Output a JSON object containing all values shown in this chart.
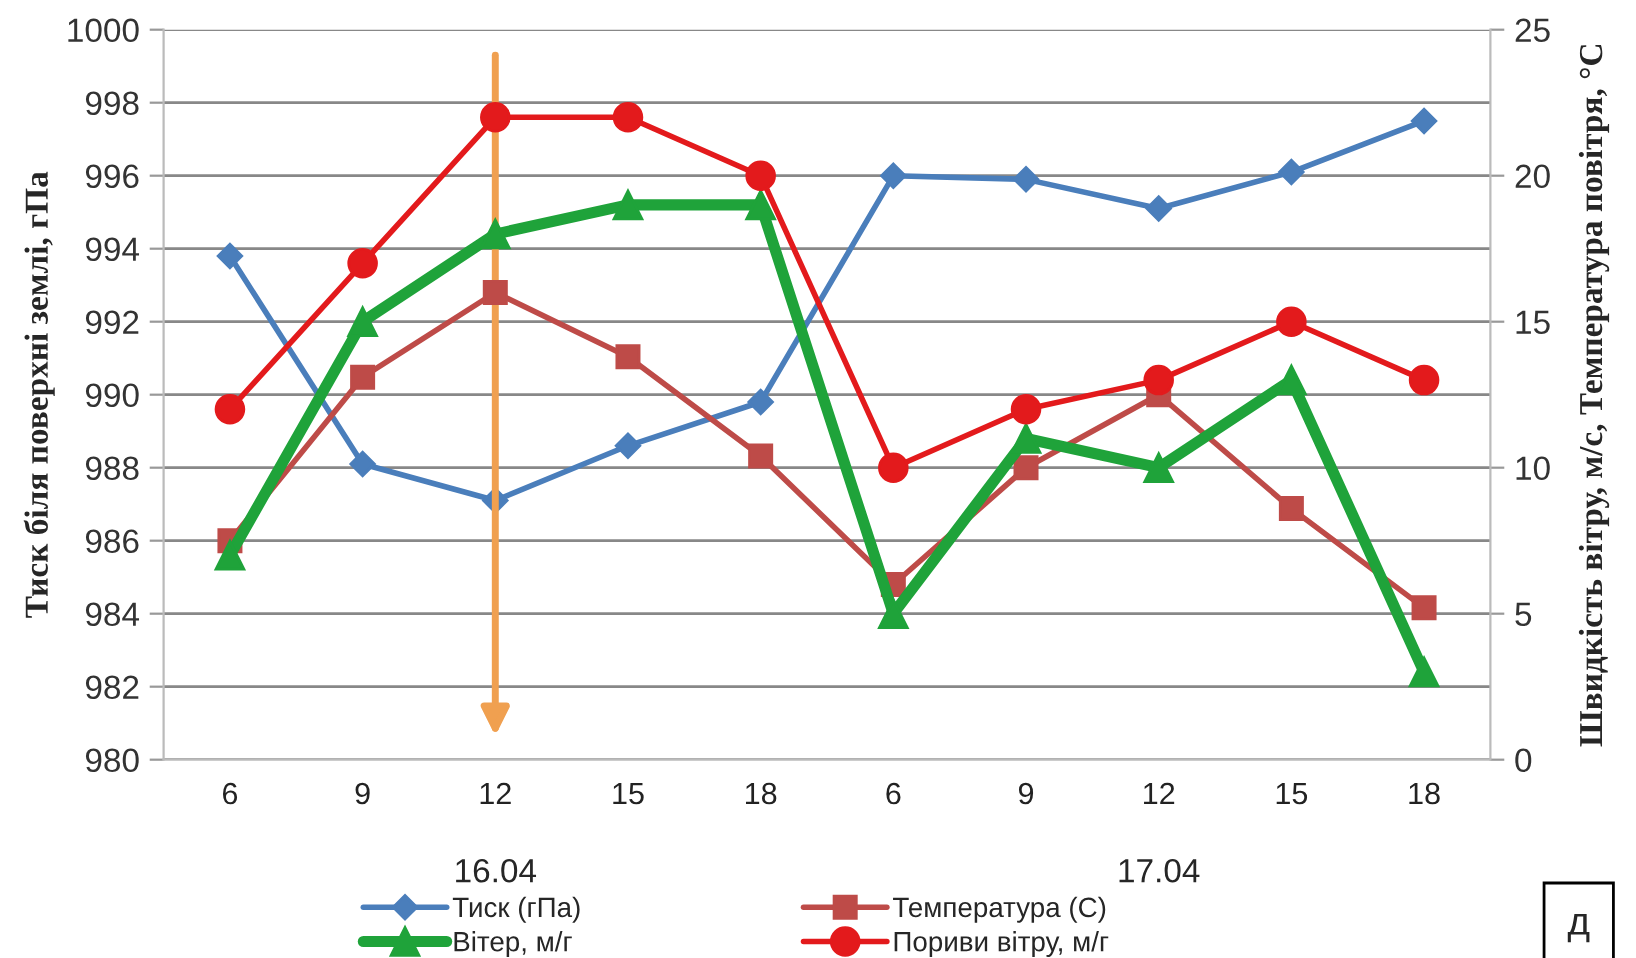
{
  "chart_data": {
    "type": "line",
    "categories": [
      "6",
      "9",
      "12",
      "15",
      "18",
      "6",
      "9",
      "12",
      "15",
      "18"
    ],
    "series": [
      {
        "name": "Тиск (гПа)",
        "color": "#4a7ebb",
        "marker": "diamond",
        "values": [
          993.8,
          988.1,
          987.1,
          988.6,
          989.8,
          996.0,
          995.9,
          995.1,
          996.1,
          997.5
        ]
      },
      {
        "name": "Температура (С)",
        "color": "#be4b48",
        "marker": "square",
        "axis": "y2",
        "values": [
          7.5,
          13.1,
          16.0,
          13.8,
          10.4,
          6.0,
          10.0,
          12.5,
          8.6,
          5.2
        ]
      },
      {
        "name": "Вітер, м/г",
        "color": "#1fa33a",
        "marker": "triangle",
        "axis": "y2",
        "values": [
          7,
          15,
          18,
          19,
          19,
          5,
          11,
          10,
          13,
          3
        ]
      },
      {
        "name": "Пориви вітру, м/г",
        "color": "#e31a1c",
        "marker": "circle",
        "axis": "y2",
        "values": [
          12,
          17,
          22,
          22,
          20,
          10,
          12,
          13,
          15,
          13
        ]
      }
    ],
    "ylabel": "Тиск біля поверхні землі, гПа",
    "y2label": "Швидкість вітру, м/с, Температура повітря, °С",
    "ylim": [
      980,
      1000
    ],
    "yticks": [
      980,
      982,
      984,
      986,
      988,
      990,
      992,
      994,
      996,
      998,
      1000
    ],
    "y2lim": [
      0,
      25
    ],
    "y2ticks": [
      0,
      5,
      10,
      15,
      20,
      25
    ],
    "grid": "y",
    "legend": "bottom",
    "ref_lines": [
      {
        "axis": "x",
        "value": "12",
        "color": "#f0a050"
      }
    ],
    "annotations": [
      "16.04",
      "17.04",
      "д"
    ]
  }
}
